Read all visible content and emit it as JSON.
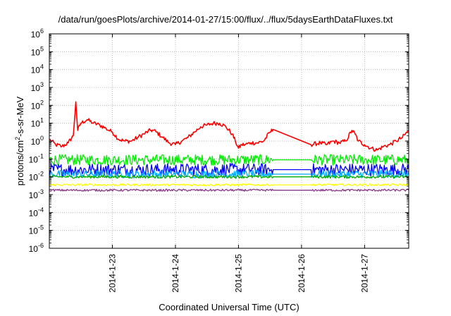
{
  "chart_data": {
    "type": "line",
    "title": "/data/run/goesPlots/archive/2014-01-27/15:00/flux/../flux/5daysEarthDataFluxes.txt",
    "xlabel": "Coordinated Universal Time (UTC)",
    "ylabel_parts": [
      "protons/cm",
      "2",
      "-s-sr-MeV"
    ],
    "ylim_log10": [
      -6,
      6
    ],
    "y_scale": "log",
    "xlim_days": [
      22.0,
      27.7
    ],
    "grid": true,
    "x_ticks": [
      {
        "label": "2014-1-23",
        "day": 23
      },
      {
        "label": "2014-1-24",
        "day": 24
      },
      {
        "label": "2014-1-25",
        "day": 25
      },
      {
        "label": "2014-1-26",
        "day": 26
      },
      {
        "label": "2014-1-27",
        "day": 27
      }
    ],
    "y_ticks": [
      {
        "base": "10",
        "exp": "6",
        "log": 6
      },
      {
        "base": "10",
        "exp": "5",
        "log": 5
      },
      {
        "base": "10",
        "exp": "4",
        "log": 4
      },
      {
        "base": "10",
        "exp": "3",
        "log": 3
      },
      {
        "base": "10",
        "exp": "2",
        "log": 2
      },
      {
        "base": "10",
        "exp": "1",
        "log": 1
      },
      {
        "base": "10",
        "exp": "0",
        "log": 0
      },
      {
        "base": "10",
        "exp": "-1",
        "log": -1
      },
      {
        "base": "10",
        "exp": "-2",
        "log": -2
      },
      {
        "base": "10",
        "exp": "-3",
        "log": -3
      },
      {
        "base": "10",
        "exp": "-4",
        "log": -4
      },
      {
        "base": "10",
        "exp": "-5",
        "log": -5
      },
      {
        "base": "10",
        "exp": "-6",
        "log": -6
      }
    ],
    "gap": [
      25.55,
      26.15
    ],
    "series": [
      {
        "color": "#ff0000",
        "noise": 0.12,
        "points": [
          [
            22.0,
            0.1
          ],
          [
            22.1,
            -0.2
          ],
          [
            22.2,
            -0.3
          ],
          [
            22.3,
            -0.1
          ],
          [
            22.38,
            0.3
          ],
          [
            22.42,
            2.2
          ],
          [
            22.45,
            0.6
          ],
          [
            22.5,
            1.0
          ],
          [
            22.6,
            1.2
          ],
          [
            22.7,
            1.0
          ],
          [
            22.8,
            0.9
          ],
          [
            22.9,
            0.7
          ],
          [
            23.0,
            0.5
          ],
          [
            23.1,
            0.1
          ],
          [
            23.2,
            0.0
          ],
          [
            23.3,
            0.0
          ],
          [
            23.4,
            0.2
          ],
          [
            23.5,
            0.4
          ],
          [
            23.6,
            0.6
          ],
          [
            23.65,
            0.6
          ],
          [
            23.7,
            0.5
          ],
          [
            23.8,
            0.2
          ],
          [
            23.9,
            -0.1
          ],
          [
            24.0,
            -0.2
          ],
          [
            24.1,
            0.0
          ],
          [
            24.2,
            0.2
          ],
          [
            24.3,
            0.5
          ],
          [
            24.4,
            0.8
          ],
          [
            24.5,
            0.9
          ],
          [
            24.6,
            1.0
          ],
          [
            24.7,
            1.0
          ],
          [
            24.8,
            0.8
          ],
          [
            24.9,
            0.4
          ],
          [
            24.95,
            0.0
          ],
          [
            25.0,
            -0.4
          ],
          [
            25.05,
            -0.2
          ],
          [
            25.1,
            -0.2
          ],
          [
            25.2,
            -0.1
          ],
          [
            25.3,
            -0.1
          ],
          [
            25.4,
            0.0
          ],
          [
            25.5,
            0.5
          ],
          [
            25.55,
            0.65
          ],
          [
            26.15,
            -0.2
          ],
          [
            26.3,
            -0.1
          ],
          [
            26.4,
            -0.2
          ],
          [
            26.5,
            0.0
          ],
          [
            26.6,
            -0.1
          ],
          [
            26.7,
            0.0
          ],
          [
            26.8,
            0.6
          ],
          [
            26.85,
            0.4
          ],
          [
            26.9,
            0.0
          ],
          [
            27.0,
            -0.2
          ],
          [
            27.1,
            -0.4
          ],
          [
            27.2,
            -0.5
          ],
          [
            27.3,
            -0.3
          ],
          [
            27.4,
            -0.2
          ],
          [
            27.5,
            0.0
          ],
          [
            27.6,
            0.2
          ],
          [
            27.7,
            0.6
          ]
        ]
      },
      {
        "color": "#00ee00",
        "noise": 0.3,
        "points": [
          [
            22.0,
            -1.05
          ],
          [
            25.55,
            -1.05
          ],
          [
            26.15,
            -1.05
          ],
          [
            27.7,
            -1.05
          ]
        ]
      },
      {
        "color": "#0000ff",
        "noise": 0.35,
        "points": [
          [
            22.0,
            -1.6
          ],
          [
            25.55,
            -1.6
          ],
          [
            26.15,
            -1.6
          ],
          [
            27.7,
            -1.6
          ]
        ]
      },
      {
        "color": "#00aaff",
        "noise": 0.22,
        "points": [
          [
            22.0,
            -1.85
          ],
          [
            25.55,
            -1.85
          ],
          [
            26.15,
            -1.85
          ],
          [
            27.7,
            -1.85
          ]
        ]
      },
      {
        "color": "#00b000",
        "noise": 0.08,
        "points": [
          [
            22.0,
            -2.0
          ],
          [
            25.55,
            -2.0
          ],
          [
            26.15,
            -2.0
          ],
          [
            27.7,
            -2.0
          ]
        ]
      },
      {
        "color": "#ffff00",
        "noise": 0.06,
        "points": [
          [
            22.0,
            -2.45
          ],
          [
            25.55,
            -2.45
          ],
          [
            26.15,
            -2.45
          ],
          [
            27.7,
            -2.45
          ]
        ]
      },
      {
        "color": "#8b3a8b",
        "noise": 0.06,
        "points": [
          [
            22.0,
            -2.75
          ],
          [
            25.55,
            -2.75
          ],
          [
            26.15,
            -2.75
          ],
          [
            27.7,
            -2.75
          ]
        ]
      }
    ]
  }
}
